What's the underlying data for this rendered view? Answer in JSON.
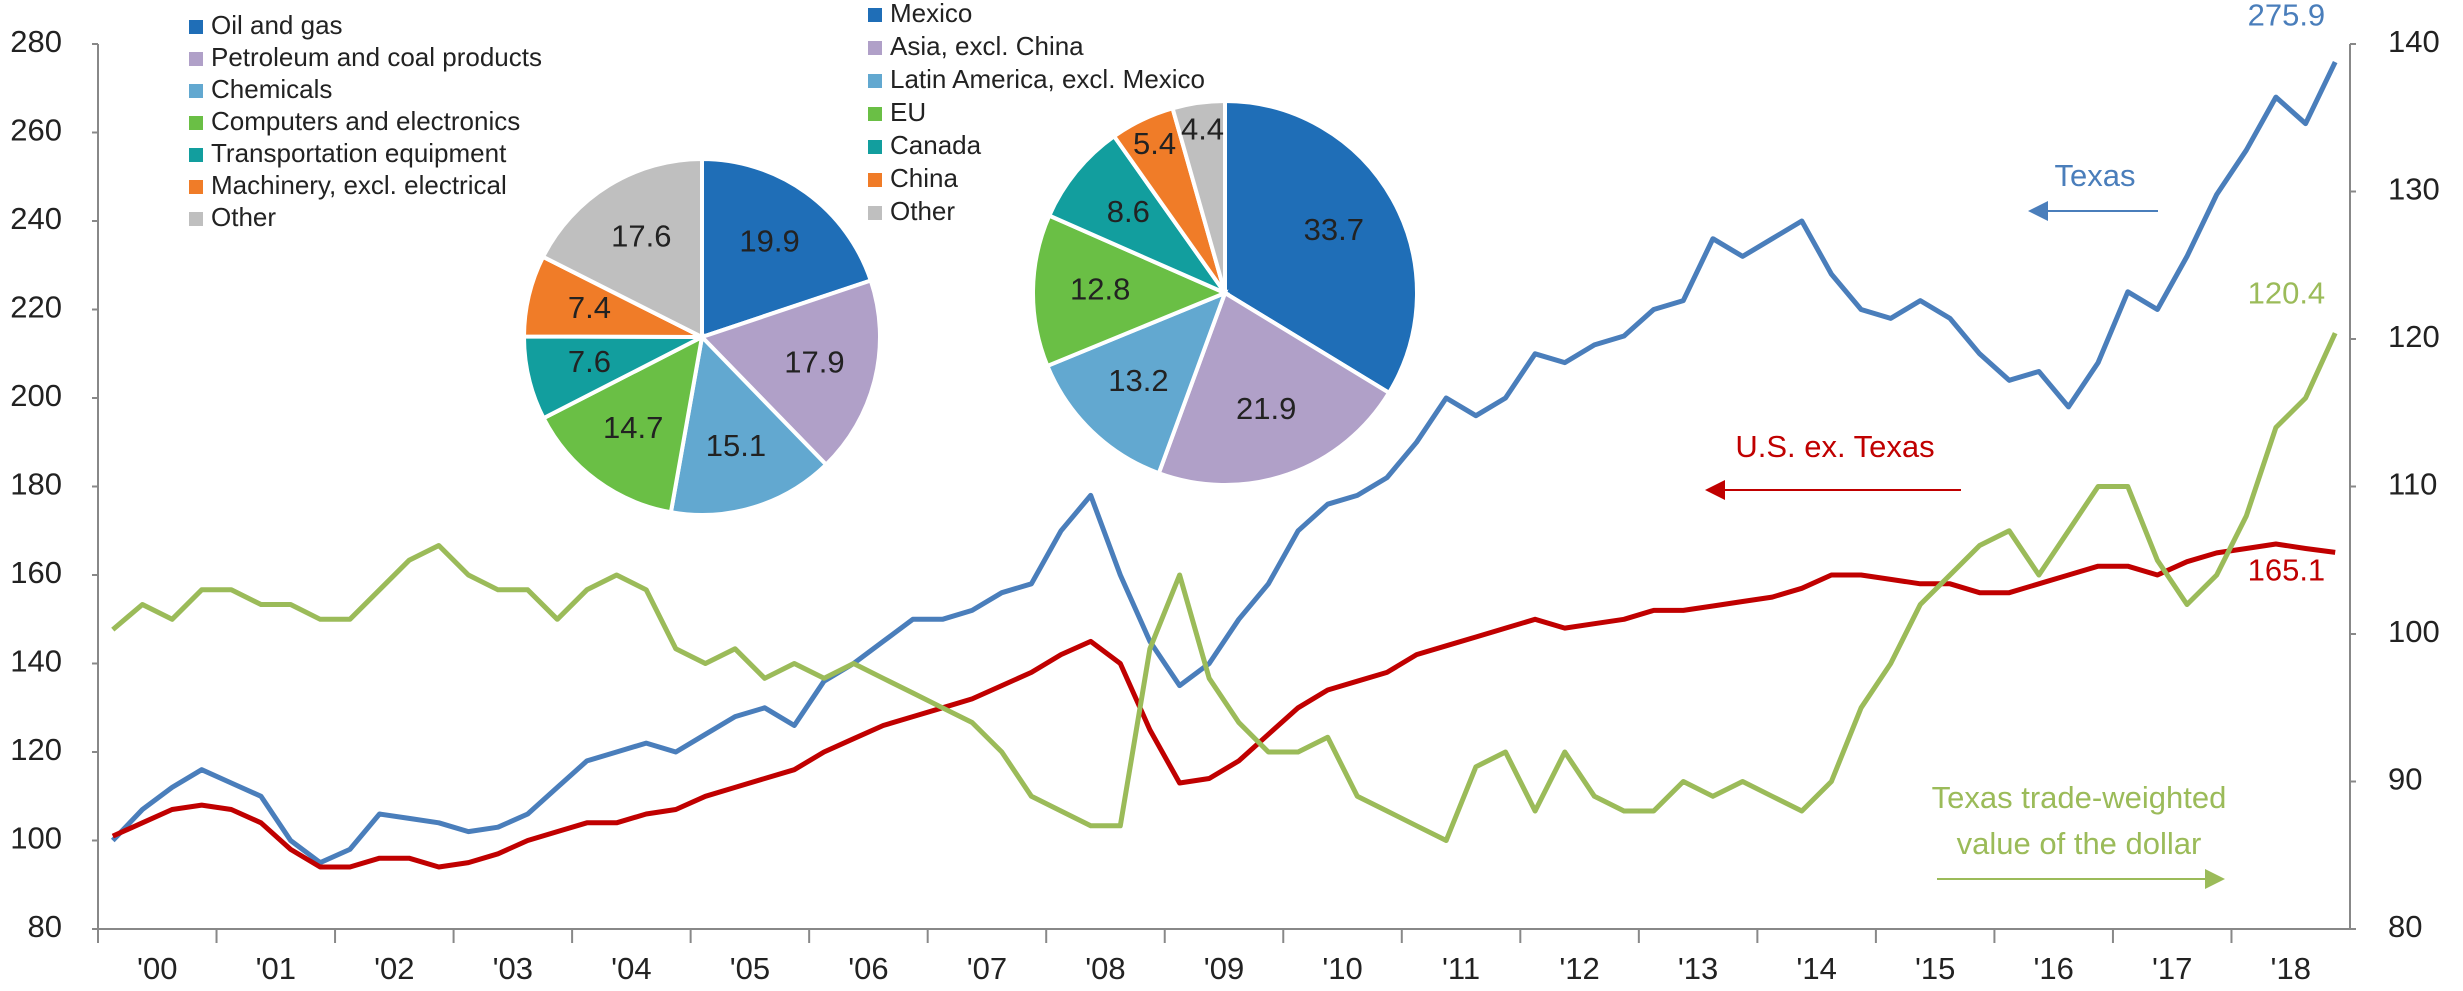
{
  "chart_data": [
    {
      "type": "line",
      "categories": [
        "'00",
        null,
        null,
        null,
        "'01",
        null,
        null,
        null,
        "'02",
        null,
        null,
        null,
        "'03",
        null,
        null,
        null,
        "'04",
        null,
        null,
        null,
        "'05",
        null,
        null,
        null,
        "'06",
        null,
        null,
        null,
        "'07",
        null,
        null,
        null,
        "'08",
        null,
        null,
        null,
        "'09",
        null,
        null,
        null,
        "'10",
        null,
        null,
        null,
        "'11",
        null,
        null,
        null,
        "'12",
        null,
        null,
        null,
        "'13",
        null,
        null,
        null,
        "'14",
        null,
        null,
        null,
        "'15",
        null,
        null,
        null,
        "'16",
        null,
        null,
        null,
        "'17",
        null,
        null,
        null,
        "'18",
        null,
        null,
        null
      ],
      "series": [
        {
          "name": "Texas",
          "color": "#4a7ebb",
          "axis": "y",
          "values": [
            100,
            107,
            112,
            116,
            113,
            110,
            100,
            95,
            98,
            106,
            105,
            104,
            102,
            103,
            106,
            112,
            118,
            120,
            122,
            120,
            124,
            128,
            130,
            126,
            136,
            140,
            145,
            150,
            150,
            152,
            156,
            158,
            170,
            178,
            160,
            145,
            135,
            140,
            150,
            158,
            170,
            176,
            178,
            182,
            190,
            200,
            196,
            200,
            210,
            208,
            212,
            214,
            220,
            222,
            236,
            232,
            236,
            240,
            228,
            220,
            218,
            222,
            218,
            210,
            204,
            206,
            198,
            208,
            224,
            220,
            232,
            246,
            256,
            268,
            262,
            275.9
          ]
        },
        {
          "name": "U.S. ex. Texas",
          "color": "#c00000",
          "axis": "y",
          "values": [
            101,
            104,
            107,
            108,
            107,
            104,
            98,
            94,
            94,
            96,
            96,
            94,
            95,
            97,
            100,
            102,
            104,
            104,
            106,
            107,
            110,
            112,
            114,
            116,
            120,
            123,
            126,
            128,
            130,
            132,
            135,
            138,
            142,
            145,
            140,
            125,
            113,
            114,
            118,
            124,
            130,
            134,
            136,
            138,
            142,
            144,
            146,
            148,
            150,
            148,
            149,
            150,
            152,
            152,
            153,
            154,
            155,
            157,
            160,
            160,
            159,
            158,
            158,
            156,
            156,
            158,
            160,
            162,
            162,
            160,
            163,
            165,
            166,
            167,
            166,
            165.1
          ]
        },
        {
          "name": "Texas trade-weighted value of the dollar",
          "color": "#9bbb59",
          "axis": "y2",
          "values": [
            100.3,
            102,
            101,
            103,
            103,
            102,
            102,
            101,
            101,
            103,
            105,
            106,
            104,
            103,
            103,
            101,
            103,
            104,
            103,
            99,
            98,
            99,
            97,
            98,
            97,
            98,
            97,
            96,
            95,
            94,
            92,
            89,
            88,
            87,
            87,
            99,
            104,
            97,
            94,
            92,
            92,
            93,
            89,
            88,
            87,
            86,
            91,
            92,
            88,
            92,
            89,
            88,
            88,
            90,
            89,
            90,
            89,
            88,
            90,
            95,
            98,
            102,
            104,
            106,
            107,
            104,
            107,
            110,
            110,
            105,
            102,
            104,
            108,
            114,
            116,
            120.4
          ]
        }
      ],
      "annotations": [
        "Texas",
        "U.S. ex. Texas",
        "Texas trade-weighted",
        "value of the dollar"
      ],
      "ylim": [
        80,
        280
      ],
      "yticks": [
        80,
        100,
        120,
        140,
        160,
        180,
        200,
        220,
        240,
        260,
        280
      ],
      "y2lim": [
        80,
        140
      ],
      "y2ticks": [
        80,
        90,
        100,
        110,
        120,
        130,
        140
      ]
    },
    {
      "type": "pie",
      "categories": [
        "Oil and gas",
        "Petroleum and coal products",
        "Chemicals",
        "Computers and electronics",
        "Transportation equipment",
        "Machinery, excl. electrical",
        "Other"
      ],
      "values": [
        19.9,
        17.9,
        15.1,
        14.7,
        7.6,
        7.4,
        17.6
      ],
      "colors": [
        "#1f6eb7",
        "#b0a0c8",
        "#62a8d0",
        "#6abf45",
        "#129e9e",
        "#f07c28",
        "#bfbfbf"
      ]
    },
    {
      "type": "pie",
      "categories": [
        "Mexico",
        "Asia, excl. China",
        "Latin America, excl. Mexico",
        "EU",
        "Canada",
        "China",
        "Other"
      ],
      "values": [
        33.7,
        21.9,
        13.2,
        12.8,
        8.6,
        5.4,
        4.4
      ],
      "colors": [
        "#1f6eb7",
        "#b0a0c8",
        "#62a8d0",
        "#6abf45",
        "#129e9e",
        "#f07c28",
        "#bfbfbf"
      ]
    }
  ]
}
